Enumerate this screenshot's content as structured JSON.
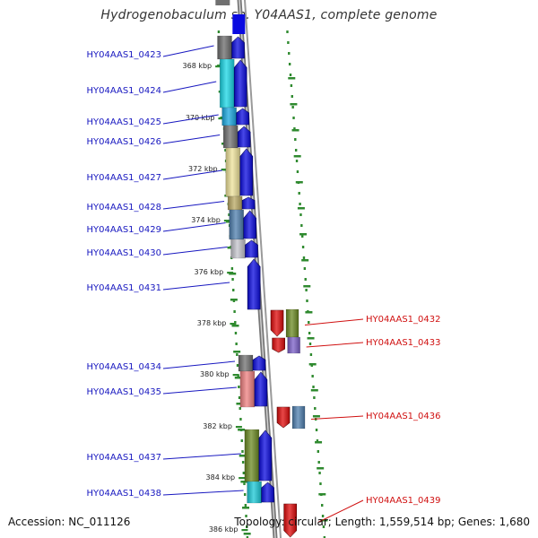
{
  "title": "Hydrogenobaculum sp. Y04AAS1, complete genome",
  "footer": {
    "accession": "Accession: NC_011126",
    "summary": "Topology: circular; Length: 1,559,514 bp; Genes: 1,680"
  },
  "ticks": [
    "368 kbp",
    "370 kbp",
    "372 kbp",
    "374 kbp",
    "376 kbp",
    "378 kbp",
    "380 kbp",
    "382 kbp",
    "384 kbp",
    "386 kbp"
  ],
  "genes": [
    {
      "label": "HY04AAS1_0423",
      "strand": "forward",
      "color": "#6b6b6b"
    },
    {
      "label": "HY04AAS1_0424",
      "strand": "forward",
      "color": "#19d7e6"
    },
    {
      "label": "HY04AAS1_0425",
      "strand": "forward",
      "color": "#1aa8e0"
    },
    {
      "label": "HY04AAS1_0426",
      "strand": "forward",
      "color": "#707070"
    },
    {
      "label": "HY04AAS1_0427",
      "strand": "forward",
      "color": "#eee29a"
    },
    {
      "label": "HY04AAS1_0428",
      "strand": "forward",
      "color": "#b9a863"
    },
    {
      "label": "HY04AAS1_0429",
      "strand": "forward",
      "color": "#4e7fae"
    },
    {
      "label": "HY04AAS1_0430",
      "strand": "forward",
      "color": "#c4c4cc"
    },
    {
      "label": "HY04AAS1_0431",
      "strand": "forward",
      "color": ""
    },
    {
      "label": "HY04AAS1_0432",
      "strand": "reverse",
      "color": "#6b8a22"
    },
    {
      "label": "HY04AAS1_0433",
      "strand": "reverse",
      "color": "#7b5fc8"
    },
    {
      "label": "HY04AAS1_0434",
      "strand": "forward",
      "color": "#707070"
    },
    {
      "label": "HY04AAS1_0435",
      "strand": "forward",
      "color": "#ee8080"
    },
    {
      "label": "HY04AAS1_0436",
      "strand": "reverse",
      "color": "#4e7fae"
    },
    {
      "label": "HY04AAS1_0437",
      "strand": "forward",
      "color": "#6b8a22"
    },
    {
      "label": "HY04AAS1_0438",
      "strand": "forward",
      "color": "#19c8d6"
    },
    {
      "label": "HY04AAS1_0439",
      "strand": "reverse",
      "color": ""
    }
  ],
  "colors": {
    "forward_label": "#1818c0",
    "reverse_label": "#d01010",
    "forward_arrow": "#0a0ae0",
    "reverse_arrow": "#e00a0a",
    "tick": "#2f8a2f",
    "backbone": "#8c8c8c"
  }
}
